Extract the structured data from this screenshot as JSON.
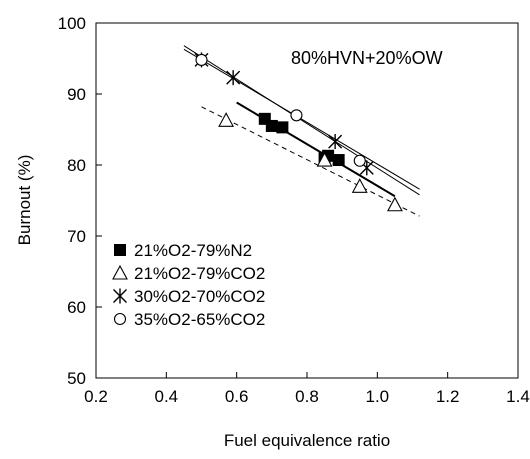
{
  "chart_data": {
    "type": "scatter",
    "annotation": "80%HVN+20%OW",
    "xlabel": "Fuel equivalence ratio",
    "ylabel": "Burnout (%)",
    "xlim": [
      0.2,
      1.4
    ],
    "ylim": [
      50,
      100
    ],
    "xticks": [
      0.2,
      0.4,
      0.6,
      0.8,
      1.0,
      1.2,
      1.4
    ],
    "xtick_labels": [
      "0.2",
      "0.4",
      "0.6",
      "0.8",
      "1.0",
      "1.2",
      "1.4"
    ],
    "yticks": [
      50,
      60,
      70,
      80,
      90,
      100
    ],
    "ytick_labels": [
      "50",
      "60",
      "70",
      "80",
      "90",
      "100"
    ],
    "grid": false,
    "legend_position": "lower-left",
    "series": [
      {
        "name": "21%O2-79%N2",
        "marker": "filled-square",
        "x": [
          0.68,
          0.7,
          0.73,
          0.85,
          0.86,
          0.89
        ],
        "y": [
          86.5,
          85.5,
          85.3,
          81.0,
          81.3,
          80.7
        ],
        "fit_line": {
          "style": "solid-thick",
          "x": [
            0.6,
            1.05
          ],
          "y": [
            88.8,
            75.6
          ]
        }
      },
      {
        "name": "21%O2-79%CO2",
        "marker": "open-triangle",
        "x": [
          0.57,
          0.85,
          0.95,
          1.05
        ],
        "y": [
          86.3,
          80.7,
          77.0,
          74.4
        ],
        "fit_line": {
          "style": "dashed",
          "x": [
            0.5,
            1.12
          ],
          "y": [
            88.2,
            72.8
          ]
        }
      },
      {
        "name": "30%O2-70%CO2",
        "marker": "asterisk",
        "x": [
          0.5,
          0.59,
          0.88,
          0.97
        ],
        "y": [
          94.8,
          92.3,
          83.3,
          79.6
        ],
        "fit_line": {
          "style": "solid-thin",
          "x": [
            0.45,
            1.12
          ],
          "y": [
            96.8,
            75.8
          ]
        }
      },
      {
        "name": "35%O2-65%CO2",
        "marker": "open-circle",
        "x": [
          0.5,
          0.77,
          0.95
        ],
        "y": [
          94.8,
          87.0,
          80.6
        ],
        "fit_line": {
          "style": "solid-thin",
          "x": [
            0.45,
            1.12
          ],
          "y": [
            96.3,
            76.6
          ]
        }
      }
    ]
  }
}
